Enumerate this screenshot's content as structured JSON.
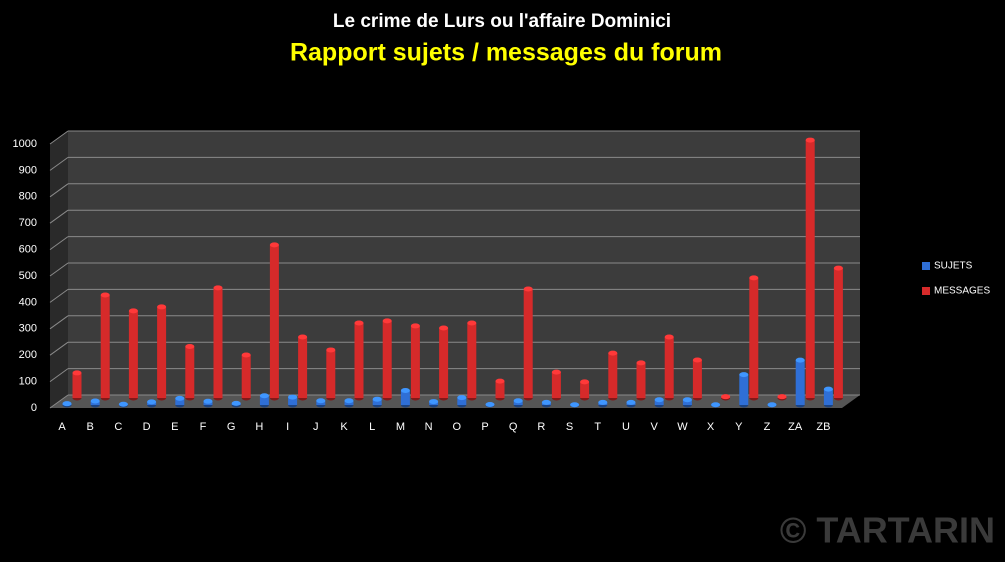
{
  "chart_data": {
    "type": "bar3d",
    "title": "Le crime de Lurs ou l'affaire Dominici",
    "subtitle": "Rapport sujets / messages du forum",
    "watermark": "© TARTARIN",
    "categories": [
      "A",
      "B",
      "C",
      "D",
      "E",
      "F",
      "G",
      "H",
      "I",
      "J",
      "K",
      "L",
      "M",
      "N",
      "O",
      "P",
      "Q",
      "R",
      "S",
      "T",
      "U",
      "V",
      "W",
      "X",
      "Y",
      "Z",
      "ZA",
      "ZB"
    ],
    "series": [
      {
        "name": "SUJETS",
        "color": "#2f6fd6",
        "values": [
          5,
          15,
          3,
          12,
          25,
          14,
          6,
          35,
          30,
          16,
          16,
          22,
          55,
          13,
          28,
          2,
          16,
          10,
          1,
          10,
          10,
          20,
          20,
          1,
          115,
          1,
          170,
          60
        ]
      },
      {
        "name": "MESSAGES",
        "color": "#d62a2a",
        "values": [
          95,
          390,
          330,
          345,
          195,
          417,
          163,
          580,
          231,
          182,
          284,
          292,
          273,
          265,
          284,
          64,
          413,
          98,
          61,
          170,
          133,
          231,
          144,
          5,
          455,
          5,
          977,
          492
        ]
      }
    ],
    "ylim": [
      0,
      1000
    ],
    "yticks": [
      0,
      100,
      200,
      300,
      400,
      500,
      600,
      700,
      800,
      900,
      1000
    ],
    "grid": true
  }
}
